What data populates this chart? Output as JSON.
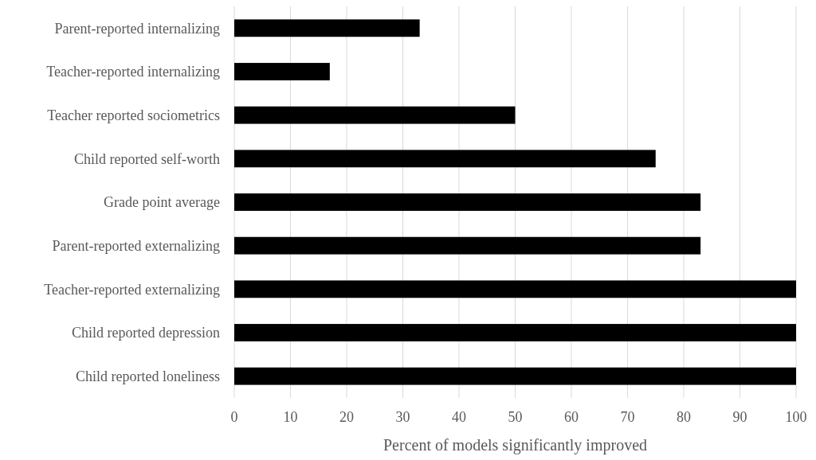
{
  "chart_data": {
    "type": "bar",
    "orientation": "horizontal",
    "xlabel": "Percent of models significantly improved",
    "categories": [
      "Parent-reported internalizing",
      "Teacher-reported internalizing",
      "Teacher reported sociometrics",
      "Child reported self-worth",
      "Grade point average",
      "Parent-reported externalizing",
      "Teacher-reported externalizing",
      "Child reported depression",
      "Child reported loneliness"
    ],
    "values": [
      33,
      17,
      50,
      75,
      83,
      83,
      100,
      100,
      100
    ],
    "color": "#000000",
    "xlim": [
      0,
      100
    ],
    "xticks": [
      0,
      10,
      20,
      30,
      40,
      50,
      60,
      70,
      80,
      90,
      100
    ],
    "grid": "x"
  }
}
